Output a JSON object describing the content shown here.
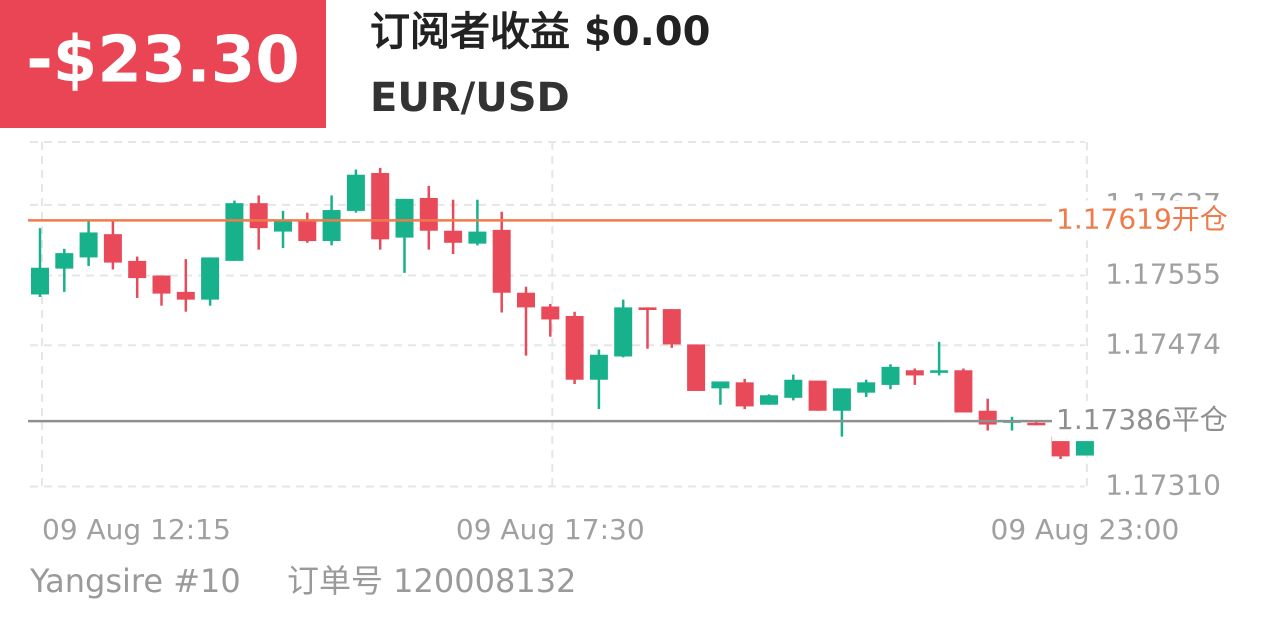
{
  "header": {
    "pnl": "-$23.30",
    "subtitle": "订阅者收益 $0.00",
    "symbol": "EUR/USD"
  },
  "footer": {
    "account": "Yangsire #10",
    "order": "订单号 120008132"
  },
  "chart_data": {
    "type": "candlestick",
    "categories": [
      "09 Aug  12:15",
      null,
      null,
      null,
      null,
      null,
      null,
      null,
      null,
      null,
      null,
      null,
      null,
      null,
      null,
      null,
      null,
      null,
      null,
      null,
      null,
      "09 Aug  17:30",
      null,
      null,
      null,
      null,
      null,
      null,
      null,
      null,
      null,
      null,
      null,
      null,
      null,
      null,
      null,
      null,
      null,
      null,
      null,
      null,
      null,
      "09 Aug  23:00"
    ],
    "open": [
      1.17533,
      1.17563,
      1.17576,
      1.17603,
      1.17572,
      1.17555,
      1.17536,
      1.17527,
      1.17572,
      1.17639,
      1.17606,
      1.17619,
      1.17595,
      1.1763,
      1.17674,
      1.17599,
      1.17645,
      1.17607,
      1.17592,
      1.17608,
      1.17535,
      1.17519,
      1.17508,
      1.17434,
      1.17461,
      1.17518,
      1.17516,
      1.17475,
      1.17424,
      1.17431,
      1.17405,
      1.17413,
      1.17433,
      1.17398,
      1.17419,
      1.17428,
      1.17445,
      1.17442,
      1.17445,
      1.17398,
      1.17384,
      1.17384,
      1.17368,
      1.17346
    ],
    "high": [
      1.1761,
      1.17586,
      1.1762,
      1.1762,
      1.17577,
      1.17555,
      1.17574,
      1.17576,
      1.17642,
      1.17648,
      1.1763,
      1.17628,
      1.17648,
      1.17678,
      1.1768,
      1.17644,
      1.17659,
      1.17643,
      1.17643,
      1.17629,
      1.17542,
      1.17522,
      1.17513,
      1.17469,
      1.17527,
      1.17518,
      1.17516,
      1.17475,
      1.17432,
      1.17435,
      1.17417,
      1.1744,
      1.17433,
      1.17424,
      1.17434,
      1.17452,
      1.17447,
      1.17478,
      1.17447,
      1.17412,
      1.17391,
      1.17387,
      1.17368,
      1.17368
    ],
    "low": [
      1.1753,
      1.17536,
      1.17566,
      1.17562,
      1.17529,
      1.1752,
      1.17513,
      1.1752,
      1.17572,
      1.17585,
      1.17587,
      1.17593,
      1.1759,
      1.17628,
      1.17585,
      1.17558,
      1.17585,
      1.1758,
      1.1759,
      1.17512,
      1.17462,
      1.17484,
      1.17429,
      1.174,
      1.1746,
      1.1747,
      1.17471,
      1.17421,
      1.17405,
      1.174,
      1.17405,
      1.1741,
      1.17398,
      1.17368,
      1.17414,
      1.17423,
      1.17428,
      1.17439,
      1.17396,
      1.17375,
      1.17375,
      1.17381,
      1.17342,
      1.17346
    ],
    "close": [
      1.17564,
      1.17581,
      1.17605,
      1.1757,
      1.17552,
      1.17534,
      1.17527,
      1.17576,
      1.17639,
      1.1761,
      1.17619,
      1.17595,
      1.17631,
      1.17672,
      1.17597,
      1.17644,
      1.17607,
      1.17593,
      1.17606,
      1.17535,
      1.17518,
      1.17504,
      1.17434,
      1.17463,
      1.17518,
      1.17515,
      1.17475,
      1.17421,
      1.17432,
      1.17403,
      1.17416,
      1.17434,
      1.17398,
      1.17424,
      1.17431,
      1.17449,
      1.17439,
      1.17445,
      1.17396,
      1.17382,
      1.17387,
      1.17382,
      1.17345,
      1.17368
    ],
    "up_color": "#17b18c",
    "down_color": "#e84a5a",
    "ylim": [
      1.17306,
      1.1771
    ],
    "yticks": [
      {
        "value": 1.1731,
        "label": "1.17310"
      },
      1.17474,
      1.17555,
      1.17637
    ],
    "grid": true,
    "price_lines": [
      {
        "value": 1.17619,
        "label": "1.17619开仓",
        "color": "#f07b4a"
      },
      {
        "value": 1.17386,
        "label": "1.17386平仓",
        "color": "#8f8f8f"
      }
    ]
  }
}
